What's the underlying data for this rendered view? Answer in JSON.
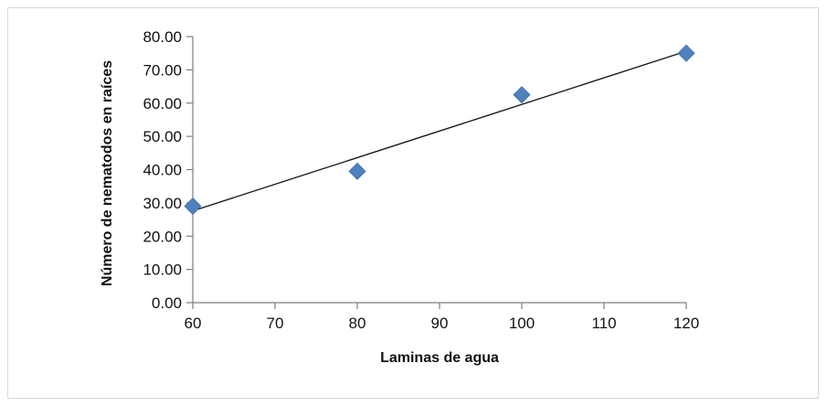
{
  "chart_data": {
    "type": "scatter",
    "title": "",
    "xlabel": "Laminas de agua",
    "ylabel": "Número de nematodos en raíces",
    "xlim": [
      60,
      120
    ],
    "ylim": [
      0,
      80
    ],
    "x_ticks": [
      60,
      70,
      80,
      90,
      100,
      110,
      120
    ],
    "x_tick_labels": [
      "60",
      "70",
      "80",
      "90",
      "100",
      "110",
      "120"
    ],
    "y_ticks": [
      0,
      10,
      20,
      30,
      40,
      50,
      60,
      70,
      80
    ],
    "y_tick_labels": [
      "0.00",
      "10.00",
      "20.00",
      "30.00",
      "40.00",
      "50.00",
      "60.00",
      "70.00",
      "80.00"
    ],
    "grid": false,
    "legend": "none",
    "series": [
      {
        "marker": "diamond",
        "color": "#4f81bd",
        "x": [
          60,
          80,
          100,
          120
        ],
        "y": [
          29,
          39.5,
          62.5,
          75
        ]
      }
    ],
    "trendline": {
      "type": "linear",
      "color": "#1a1a1a",
      "x": [
        60,
        120
      ],
      "y": [
        27.6,
        75.6
      ]
    }
  }
}
